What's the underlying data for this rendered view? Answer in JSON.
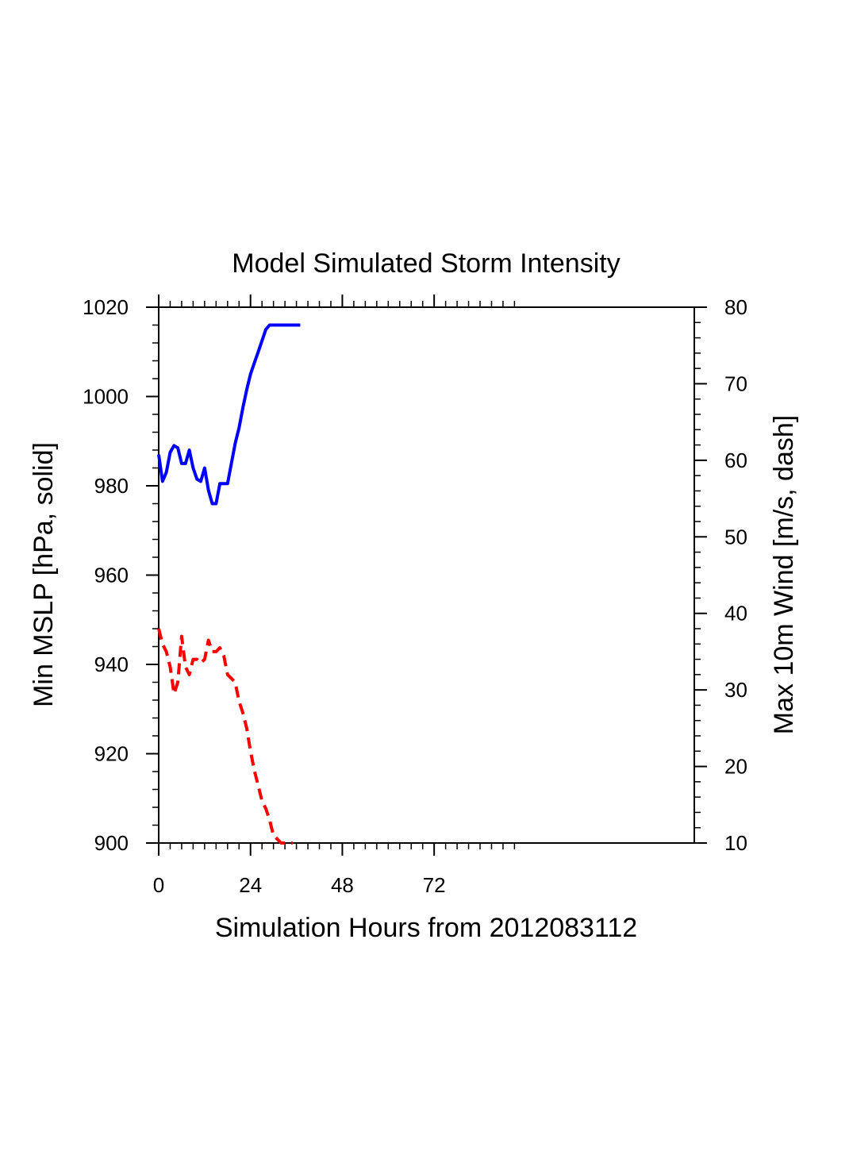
{
  "chart_data": {
    "type": "line",
    "title": "Model Simulated Storm Intensity",
    "xlabel": "Simulation Hours from 2012083112",
    "ylabel_left": "Min MSLP  [hPa, solid]",
    "ylabel_right": "Max 10m Wind  [m/s, dash]",
    "xlim": [
      0,
      140
    ],
    "xticks": [
      0,
      24,
      48,
      72
    ],
    "xtick_labels": [
      "0",
      "24",
      "48",
      "72"
    ],
    "ylim_left": [
      900,
      1020
    ],
    "yticks_left": [
      900,
      920,
      940,
      960,
      980,
      1000,
      1020
    ],
    "ytick_labels_left": [
      "900",
      "920",
      "940",
      "960",
      "980",
      "1000",
      "1020"
    ],
    "ylim_right": [
      10,
      80
    ],
    "yticks_right": [
      10,
      20,
      30,
      40,
      50,
      60,
      70,
      80
    ],
    "ytick_labels_right": [
      "10",
      "20",
      "30",
      "40",
      "50",
      "60",
      "70",
      "80"
    ],
    "grid": false,
    "series": [
      {
        "name": "Min MSLP",
        "axis": "left",
        "style": "solid",
        "color": "#0000ff",
        "x": [
          0,
          1,
          2,
          3,
          4,
          5,
          6,
          7,
          8,
          9,
          10,
          11,
          12,
          13,
          14,
          15,
          16,
          17,
          18,
          19,
          20,
          21,
          22,
          23,
          24,
          25,
          26,
          27,
          28,
          29,
          30,
          31,
          32,
          33,
          34,
          35,
          36,
          37
        ],
        "values": [
          987,
          981,
          983,
          987.5,
          989,
          988.5,
          985,
          985,
          988,
          984,
          981.5,
          981,
          984,
          979,
          976,
          976,
          980.5,
          980.5,
          980.5,
          985,
          989.5,
          993,
          997.5,
          1001.5,
          1005,
          1007.5,
          1010,
          1012.5,
          1015,
          1016,
          1016,
          1016,
          1016,
          1016,
          1016,
          1016,
          1016,
          1016
        ]
      },
      {
        "name": "Max 10m Wind",
        "axis": "right",
        "style": "dash",
        "color": "#ff0000",
        "x": [
          0,
          1,
          2,
          3,
          4,
          5,
          6,
          7,
          8,
          9,
          10,
          11,
          12,
          13,
          14,
          15,
          16,
          17,
          18,
          19,
          20,
          21,
          22,
          23,
          24,
          25,
          26,
          27,
          28,
          29,
          30,
          31,
          32,
          33,
          34,
          35
        ],
        "values": [
          38,
          36,
          35,
          33,
          29.5,
          31,
          37,
          33,
          32,
          34,
          34,
          33.5,
          34,
          36.5,
          35,
          35,
          35.5,
          34.5,
          32,
          31.5,
          31,
          28.5,
          27,
          25,
          22,
          19.5,
          17.5,
          15.5,
          14.5,
          13,
          11,
          10.5,
          10,
          10,
          10,
          10
        ]
      }
    ]
  }
}
